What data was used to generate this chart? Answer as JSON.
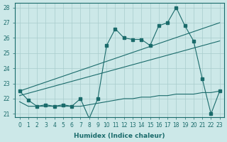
{
  "xlabel": "Humidex (Indice chaleur)",
  "bg_color": "#cce8e8",
  "line_color": "#1a6b6b",
  "grid_color": "#a8cccc",
  "xlim": [
    -0.5,
    23.5
  ],
  "ylim": [
    20.8,
    28.3
  ],
  "yticks": [
    21,
    22,
    23,
    24,
    25,
    26,
    27,
    28
  ],
  "xticks": [
    0,
    1,
    2,
    3,
    4,
    5,
    6,
    7,
    8,
    9,
    10,
    11,
    12,
    13,
    14,
    15,
    16,
    17,
    18,
    19,
    20,
    21,
    22,
    23
  ],
  "line1_x": [
    0,
    1,
    2,
    3,
    4,
    5,
    6,
    7,
    8,
    9,
    10,
    11,
    12,
    13,
    14,
    15,
    16,
    17,
    18,
    19,
    20,
    21,
    22,
    23
  ],
  "line1_y": [
    22.5,
    21.9,
    21.5,
    21.6,
    21.5,
    21.6,
    21.5,
    22.0,
    20.7,
    22.0,
    25.5,
    26.6,
    26.0,
    25.9,
    25.9,
    25.5,
    26.8,
    27.0,
    28.0,
    26.8,
    25.8,
    23.3,
    21.0,
    22.5
  ],
  "line2_x": [
    0,
    23
  ],
  "line2_y": [
    22.5,
    27.0
  ],
  "line3_x": [
    0,
    23
  ],
  "line3_y": [
    22.2,
    25.8
  ],
  "line4_x": [
    0,
    1,
    2,
    3,
    4,
    5,
    6,
    7,
    8,
    9,
    10,
    11,
    12,
    13,
    14,
    15,
    16,
    17,
    18,
    19,
    20,
    21,
    22,
    23
  ],
  "line4_y": [
    21.8,
    21.5,
    21.5,
    21.5,
    21.5,
    21.5,
    21.5,
    21.5,
    21.6,
    21.7,
    21.8,
    21.9,
    22.0,
    22.0,
    22.1,
    22.1,
    22.2,
    22.2,
    22.3,
    22.3,
    22.3,
    22.4,
    22.4,
    22.5
  ]
}
